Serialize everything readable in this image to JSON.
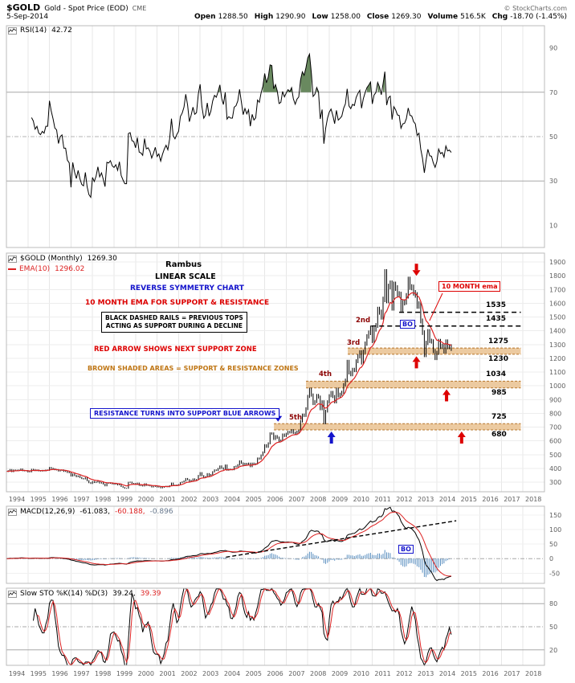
{
  "header": {
    "symbol": "$GOLD",
    "name": "Gold - Spot Price (EOD)",
    "exchange": "CME",
    "copyright": "© StockCharts.com",
    "date": "5-Sep-2014",
    "quote": [
      {
        "label": "Open",
        "value": "1288.50"
      },
      {
        "label": "High",
        "value": "1290.90"
      },
      {
        "label": "Low",
        "value": "1258.00"
      },
      {
        "label": "Close",
        "value": "1269.30"
      },
      {
        "label": "Volume",
        "value": "516.5K"
      },
      {
        "label": "Chg",
        "value": "-18.70 (-1.45%)"
      }
    ]
  },
  "legends": {
    "rsi": {
      "label": "RSI(14)",
      "value": "42.72"
    },
    "price": {
      "label": "$GOLD (Monthly)",
      "value": "1269.30"
    },
    "ema": {
      "label": "EMA(10)",
      "value": "1296.02"
    },
    "macd": {
      "label": "MACD(12,26,9)",
      "v1": "-61.083,",
      "v2": "-60.188,",
      "v3": "-0.896"
    },
    "sto": {
      "label": "Slow STO %K(14) %D(3)",
      "v1": "39.24,",
      "v2": "39.39"
    }
  },
  "annotations": {
    "rambus": "Rambus",
    "linear_scale": "LINEAR SCALE",
    "reverse_symmetry": "REVERSE SYMMETRY CHART",
    "ema_note": "10 MONTH EMA FOR SUPPORT & RESISTANCE",
    "dashed_rails_line1": "BLACK DASHED RAILS = PREVIOUS TOPS",
    "dashed_rails_line2": "ACTING AS SUPPORT DURING A DECLINE",
    "red_arrow_note": "RED ARROW SHOWS NEXT SUPPORT ZONE",
    "brown_note": "BROWN SHADED AREAS = SUPPORT & RESISTANCE ZONES",
    "resistance_note": "RESISTANCE TURNS INTO SUPPORT BLUE ARROWS",
    "ema_box": "10 MONTH ema",
    "bo_price": "BO",
    "bo_macd": "BO",
    "ordinals": [
      "2nd",
      "3rd",
      "4th",
      "5th"
    ],
    "level_labels": [
      "1535",
      "1435",
      "1275",
      "1230",
      "1034",
      "985",
      "725",
      "680"
    ]
  },
  "colors": {
    "red": "#dd0000",
    "blue": "#1414cc",
    "maroon": "#8b0000",
    "brown_text": "#bf7615",
    "zone_fill": "#eccaa0",
    "zone_edge": "#b5742a",
    "rsi_fill": "#69895f",
    "price_bar": "#000000",
    "ema_line": "#dd2222",
    "macd_line": "#000000",
    "signal_line": "#dd2222",
    "histogram": "#5a8fc0",
    "sto_k": "#000000",
    "sto_d": "#dd2222",
    "grid": "#e7e7e7",
    "axis_text": "#606060",
    "panel_border": "#bbbbbb"
  },
  "chart_data": {
    "x_axis": {
      "start": 1994,
      "end": 2019,
      "tick_years": [
        1994,
        1995,
        1996,
        1997,
        1998,
        1999,
        2000,
        2001,
        2002,
        2003,
        2004,
        2005,
        2006,
        2007,
        2008,
        2009,
        2010,
        2011,
        2012,
        2013,
        2014,
        2015,
        2016,
        2017,
        2018
      ]
    },
    "price_panel": {
      "type": "bar",
      "timeframe": "monthly",
      "x_start": 1994.0,
      "close": [
        378,
        382,
        390,
        377,
        387,
        386,
        385,
        387,
        394,
        384,
        383,
        383,
        375,
        376,
        392,
        390,
        385,
        387,
        383,
        382,
        384,
        383,
        387,
        387,
        405,
        400,
        396,
        391,
        390,
        382,
        386,
        387,
        379,
        379,
        371,
        369,
        345,
        359,
        348,
        340,
        345,
        334,
        326,
        324,
        332,
        311,
        296,
        290,
        304,
        297,
        301,
        308,
        293,
        296,
        286,
        273,
        293,
        292,
        294,
        287,
        285,
        287,
        280,
        286,
        268,
        261,
        255,
        255,
        299,
        300,
        291,
        290,
        283,
        293,
        276,
        275,
        272,
        288,
        276,
        277,
        273,
        265,
        269,
        274,
        264,
        266,
        258,
        263,
        267,
        270,
        266,
        274,
        293,
        278,
        275,
        279,
        282,
        297,
        301,
        308,
        326,
        318,
        304,
        312,
        323,
        317,
        319,
        348,
        368,
        347,
        334,
        339,
        361,
        346,
        355,
        375,
        388,
        386,
        398,
        416,
        402,
        395,
        423,
        388,
        393,
        391,
        391,
        412,
        415,
        425,
        453,
        438,
        422,
        435,
        428,
        436,
        414,
        437,
        429,
        433,
        473,
        470,
        495,
        517,
        569,
        556,
        582,
        654,
        653,
        614,
        634,
        623,
        599,
        603,
        646,
        636,
        651,
        665,
        662,
        677,
        659,
        650,
        666,
        673,
        743,
        789,
        783,
        834,
        923,
        975,
        933,
        871,
        885,
        930,
        918,
        833,
        884,
        730,
        816,
        884,
        928,
        952,
        922,
        883,
        975,
        927,
        939,
        953,
        1008,
        1040,
        1175,
        1096,
        1083,
        1118,
        1113,
        1179,
        1215,
        1244,
        1169,
        1248,
        1307,
        1359,
        1386,
        1421,
        1327,
        1411,
        1439,
        1556,
        1536,
        1500,
        1628,
        1826,
        1620,
        1722,
        1745,
        1566,
        1737,
        1711,
        1668,
        1664,
        1558,
        1604,
        1610,
        1655,
        1772,
        1719,
        1715,
        1676,
        1661,
        1580,
        1596,
        1472,
        1387,
        1224,
        1312,
        1396,
        1327,
        1323,
        1253,
        1202,
        1240,
        1326,
        1283,
        1291,
        1250,
        1322,
        1282,
        1287,
        1269
      ],
      "ema_period": 10,
      "ylim": [
        230,
        1965
      ],
      "yticks_gray": [
        1900,
        1800,
        1700,
        1600,
        1500,
        1400,
        1300,
        1200,
        1100,
        1000,
        900,
        800,
        700,
        600,
        500,
        400,
        300
      ],
      "zones": [
        {
          "from": 1230,
          "to": 1275,
          "start_x": 2009.86
        },
        {
          "from": 985,
          "to": 1034,
          "start_x": 2007.92
        },
        {
          "from": 680,
          "to": 725,
          "start_x": 2006.43
        }
      ],
      "zone_end_x": 2017.9,
      "rails": [
        {
          "y": 1535,
          "start_x": 2012.25,
          "end_x": 2017.9
        },
        {
          "y": 1435,
          "start_x": 2010.95,
          "end_x": 2017.9
        }
      ],
      "arrows": [
        {
          "dir": "down",
          "color": "red",
          "x": 2013.05,
          "tip": 1800
        },
        {
          "dir": "up",
          "color": "red",
          "x": 2013.05,
          "tip": 1215
        },
        {
          "dir": "up",
          "color": "red",
          "x": 2014.45,
          "tip": 975
        },
        {
          "dir": "up",
          "color": "red",
          "x": 2015.15,
          "tip": 668
        },
        {
          "dir": "down",
          "color": "blue",
          "x": 2006.62,
          "tip": 740
        },
        {
          "dir": "up",
          "color": "blue",
          "x": 2009.1,
          "tip": 668
        }
      ],
      "ema_callout": {
        "x1": 2014.26,
        "y1": 1673,
        "x2": 2013.66,
        "y2": 1474
      }
    },
    "rsi_panel": {
      "type": "line",
      "derived": "RSI(14) of close",
      "period": 14,
      "ylim": [
        0,
        100
      ],
      "yticks": [
        90,
        70,
        50,
        30,
        10
      ],
      "overbought": 70,
      "oversold": 30,
      "midline": 50,
      "last_value": 42.72
    },
    "macd_panel": {
      "type": "line+histogram",
      "derived": "MACD(12,26,9) of close",
      "params": [
        12,
        26,
        9
      ],
      "ylim": [
        -85,
        180
      ],
      "yticks": [
        150,
        100,
        50,
        0,
        -50
      ],
      "trendline": {
        "x1": 2004.2,
        "y1": 5,
        "x2": 2014.9,
        "y2": 130
      },
      "last_values": [
        -61.083,
        -60.188,
        -0.896
      ]
    },
    "sto_panel": {
      "type": "line",
      "derived": "Slow Stochastic %K(14) %D(3) of close",
      "k_period": 14,
      "slowing": 3,
      "d_period": 3,
      "ylim": [
        0,
        100
      ],
      "yticks": [
        80,
        50,
        20
      ],
      "lines": [
        80,
        50,
        20
      ],
      "last_values": [
        39.24,
        39.39
      ]
    }
  }
}
